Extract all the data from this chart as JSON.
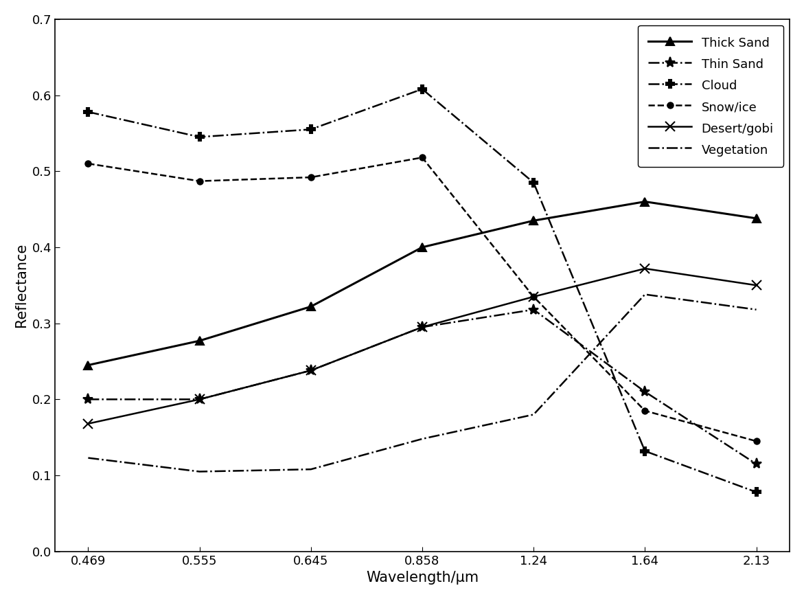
{
  "x_values": [
    0.469,
    0.555,
    0.645,
    0.858,
    1.24,
    1.64,
    2.13
  ],
  "x_labels": [
    "0.469",
    "0.555",
    "0.645",
    "0.858",
    "1.24",
    "1.64",
    "2.13"
  ],
  "series": [
    {
      "label": "Thick Sand",
      "y": [
        0.245,
        0.277,
        0.322,
        0.4,
        0.435,
        0.46,
        0.438
      ]
    },
    {
      "label": "Thin Sand",
      "y": [
        0.2,
        0.2,
        0.238,
        0.295,
        0.318,
        0.21,
        0.115
      ]
    },
    {
      "label": "Cloud",
      "y": [
        0.578,
        0.545,
        0.555,
        0.608,
        0.485,
        0.132,
        0.078
      ]
    },
    {
      "label": "Snow/ice",
      "y": [
        0.51,
        0.487,
        0.492,
        0.518,
        0.335,
        0.185,
        0.145
      ]
    },
    {
      "label": "Desert/gobi",
      "y": [
        0.168,
        0.2,
        0.238,
        0.295,
        0.335,
        0.372,
        0.35
      ]
    },
    {
      "label": "Vegetation",
      "y": [
        0.123,
        0.105,
        0.108,
        0.148,
        0.18,
        0.338,
        0.318
      ]
    }
  ],
  "xlabel": "Wavelength/μm",
  "ylabel": "Reflectance",
  "ylim": [
    0.0,
    0.7
  ],
  "yticks": [
    0.0,
    0.1,
    0.2,
    0.3,
    0.4,
    0.5,
    0.6,
    0.7
  ],
  "background_color": "#ffffff",
  "legend_loc": "upper right",
  "axis_fontsize": 15,
  "tick_fontsize": 13,
  "legend_fontsize": 13
}
